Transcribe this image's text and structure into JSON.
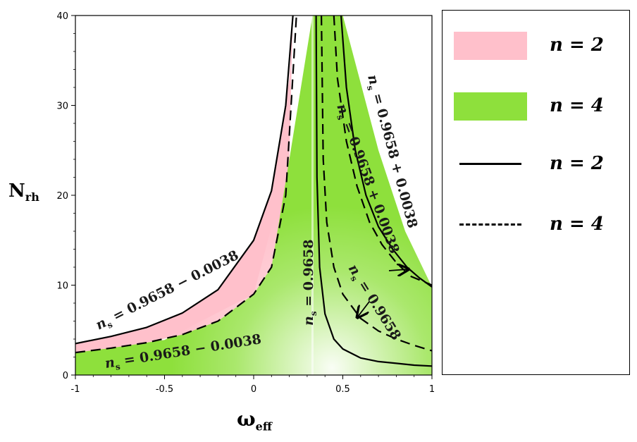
{
  "chart_data": {
    "type": "area",
    "xlabel": "ω",
    "xlabel_sub": "eff",
    "ylabel": "N",
    "ylabel_sub": "rh",
    "xlim": [
      -1,
      1
    ],
    "ylim": [
      0,
      40
    ],
    "x_ticks": [
      -1,
      -0.5,
      0,
      0.5,
      1
    ],
    "x_tick_labels": [
      "-1",
      "-0.5",
      "0",
      "0.5",
      "1"
    ],
    "y_ticks": [
      0,
      10,
      20,
      30,
      40
    ],
    "y_tick_labels": [
      "0",
      "10",
      "20",
      "30",
      "40"
    ],
    "series": [
      {
        "name": "n = 2",
        "kind": "region",
        "color": "#ffc0cb",
        "x": [
          -1,
          -0.8,
          -0.6,
          -0.4,
          -0.2,
          0,
          0.1,
          0.2,
          0.22
        ],
        "y_lower": [
          2.5,
          3.0,
          3.6,
          4.5,
          6.0,
          9.0,
          12.0,
          24.0,
          40.0
        ],
        "y_upper": [
          3.5,
          4.3,
          5.3,
          6.9,
          9.5,
          15.0,
          20.5,
          33.0,
          40.0
        ]
      },
      {
        "name": "n = 4",
        "kind": "region",
        "color": "#8ee03c",
        "x": [
          -1,
          -0.5,
          0,
          0.2,
          0.33,
          0.5,
          0.7,
          0.85,
          1
        ],
        "y_lower": [
          0,
          0,
          0,
          0,
          0,
          0,
          0,
          0,
          0
        ],
        "y_upper": [
          2.5,
          3.9,
          9.0,
          24.0,
          40.0,
          40.0,
          25.0,
          16.0,
          9.8
        ]
      },
      {
        "name": "n = 2",
        "kind": "line",
        "dash": "solid",
        "curves": [
          {
            "x": [
              -1,
              -0.8,
              -0.6,
              -0.4,
              -0.2,
              0,
              0.1,
              0.18,
              0.22
            ],
            "y": [
              3.5,
              4.3,
              5.3,
              6.9,
              9.5,
              15.0,
              20.5,
              30.0,
              40.0
            ]
          },
          {
            "x": [
              0.35,
              0.355,
              0.37,
              0.4,
              0.45,
              0.5,
              0.6,
              0.7,
              0.8,
              0.9,
              1.0
            ],
            "y": [
              40.0,
              22.0,
              12.0,
              6.8,
              4.0,
              2.9,
              1.9,
              1.5,
              1.3,
              1.1,
              1.0
            ]
          },
          {
            "x": [
              0.49,
              0.52,
              0.57,
              0.63,
              0.7,
              0.78,
              0.86,
              0.93,
              1.0
            ],
            "y": [
              40.0,
              32.0,
              25.0,
              20.0,
              16.5,
              14.0,
              12.0,
              10.8,
              9.8
            ]
          }
        ]
      },
      {
        "name": "n = 4",
        "kind": "line",
        "dash": "dashed",
        "curves": [
          {
            "x": [
              -1,
              -0.8,
              -0.6,
              -0.4,
              -0.2,
              0,
              0.1,
              0.18,
              0.24
            ],
            "y": [
              2.5,
              3.0,
              3.6,
              4.5,
              6.0,
              9.0,
              12.0,
              20.0,
              40.0
            ]
          },
          {
            "x": [
              0.38,
              0.39,
              0.41,
              0.45,
              0.5,
              0.6,
              0.7,
              0.8,
              0.9,
              1.0
            ],
            "y": [
              40.0,
              24.0,
              17.0,
              12.0,
              9.0,
              6.3,
              4.9,
              4.0,
              3.3,
              2.7
            ]
          },
          {
            "x": [
              0.45,
              0.47,
              0.52,
              0.58,
              0.65,
              0.72,
              0.8,
              0.88,
              0.94,
              1.0
            ],
            "y": [
              40.0,
              33.0,
              26.0,
              21.0,
              17.0,
              14.5,
              12.5,
              11.0,
              10.5,
              10.0
            ]
          }
        ]
      }
    ],
    "annotations": [
      {
        "text": "n_s = 0.9658 − 0.0038",
        "main": "= 0.9658 − 0.0038"
      },
      {
        "text": "n_s = 0.9658 − 0.0038",
        "main": "= 0.9658 − 0.0038"
      },
      {
        "text": "n_s = 0.9658",
        "main": "= 0.9658"
      },
      {
        "text": "n_s = 0.9658 + 0.0038",
        "main": "= 0.9658 + 0.0038"
      },
      {
        "text": "n_s = 0.9658 + 0.0038",
        "main": "= 0.9658 + 0.0038"
      },
      {
        "text": "n_s = 0.9658",
        "main": "= 0.9658"
      }
    ],
    "legend_position": "right"
  },
  "legend": {
    "items": [
      {
        "label": "n = 2",
        "kind": "fill",
        "color": "#ffc0cb"
      },
      {
        "label": "n = 4",
        "kind": "fill",
        "color": "#8ee03c"
      },
      {
        "label": "n = 2",
        "kind": "solid-line"
      },
      {
        "label": "n = 4",
        "kind": "dashed-line"
      }
    ]
  }
}
